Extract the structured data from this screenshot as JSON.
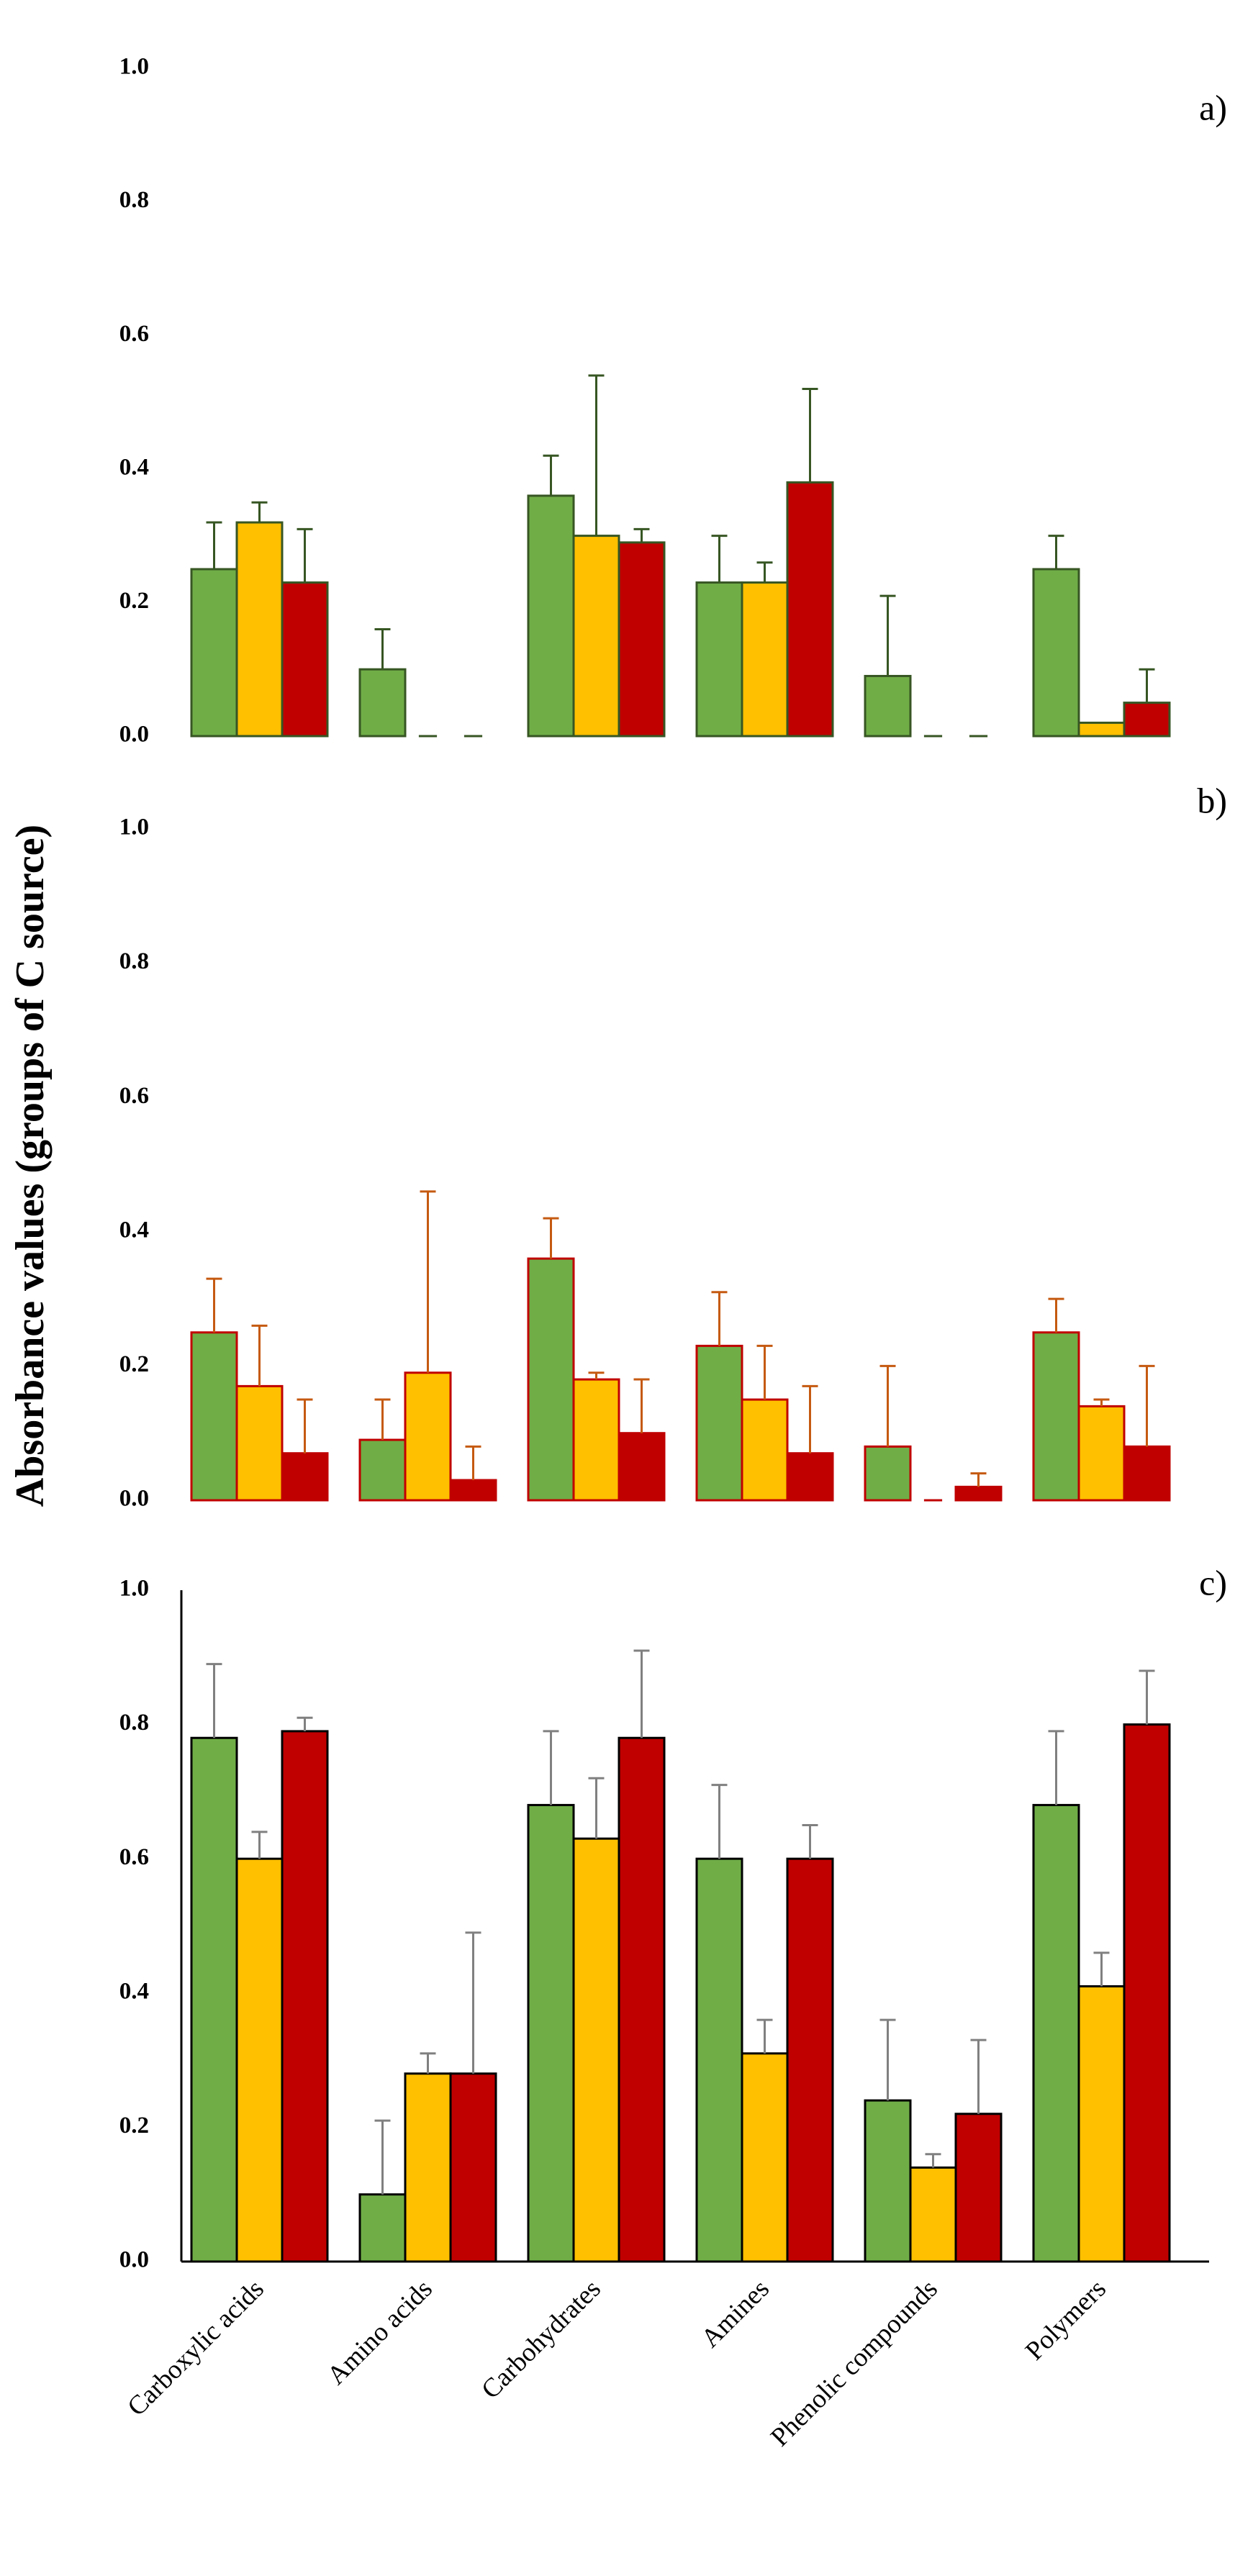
{
  "chart_data": {
    "type": "bar",
    "ylabel": "Absorbance values (groups of C source)",
    "categories": [
      "Carboxylic acids",
      "Amino acids",
      "Carbohydrates",
      "Amines",
      "Phenolic compounds",
      "Polymers"
    ],
    "series_colors": {
      "green": "#70AD47",
      "yellow": "#FFC000",
      "red": "#C00000"
    },
    "panels": [
      {
        "label": "a)",
        "ylim": [
          0,
          1
        ],
        "yticks": [
          "0.0",
          "0.2",
          "0.4",
          "0.6",
          "0.8",
          "1.0"
        ],
        "outline_color": "#375623",
        "error_color": "#375623",
        "series": [
          {
            "name": "green",
            "values": [
              0.25,
              0.1,
              0.36,
              0.23,
              0.09,
              0.25
            ],
            "errors": [
              0.07,
              0.06,
              0.06,
              0.07,
              0.12,
              0.05
            ]
          },
          {
            "name": "yellow",
            "values": [
              0.32,
              0.0,
              0.3,
              0.23,
              0.0,
              0.02
            ],
            "errors": [
              0.03,
              0.0,
              0.24,
              0.03,
              0.0,
              0.0
            ]
          },
          {
            "name": "red",
            "values": [
              0.23,
              0.0,
              0.29,
              0.38,
              0.0,
              0.05
            ],
            "errors": [
              0.08,
              0.0,
              0.02,
              0.14,
              0.0,
              0.05
            ]
          }
        ]
      },
      {
        "label": "b)",
        "ylim": [
          0,
          1
        ],
        "yticks": [
          "0.0",
          "0.2",
          "0.4",
          "0.6",
          "0.8",
          "1.0"
        ],
        "outline_color": "#C00000",
        "error_color": "#C55A11",
        "series": [
          {
            "name": "green",
            "values": [
              0.25,
              0.09,
              0.36,
              0.23,
              0.08,
              0.25
            ],
            "errors": [
              0.08,
              0.06,
              0.06,
              0.08,
              0.12,
              0.05
            ]
          },
          {
            "name": "yellow",
            "values": [
              0.17,
              0.19,
              0.18,
              0.15,
              0.0,
              0.14
            ],
            "errors": [
              0.09,
              0.27,
              0.01,
              0.08,
              0.0,
              0.01
            ]
          },
          {
            "name": "red",
            "values": [
              0.07,
              0.03,
              0.1,
              0.07,
              0.02,
              0.08
            ],
            "errors": [
              0.08,
              0.05,
              0.08,
              0.1,
              0.02,
              0.12
            ]
          }
        ]
      },
      {
        "label": "c)",
        "ylim": [
          0,
          1
        ],
        "yticks": [
          "0.0",
          "0.2",
          "0.4",
          "0.6",
          "0.8",
          "1.0"
        ],
        "outline_color": "#000000",
        "error_color": "#808080",
        "series": [
          {
            "name": "green",
            "values": [
              0.78,
              0.1,
              0.68,
              0.6,
              0.24,
              0.68
            ],
            "errors": [
              0.11,
              0.11,
              0.11,
              0.11,
              0.12,
              0.11
            ]
          },
          {
            "name": "yellow",
            "values": [
              0.6,
              0.28,
              0.63,
              0.31,
              0.14,
              0.41
            ],
            "errors": [
              0.04,
              0.03,
              0.09,
              0.05,
              0.02,
              0.05
            ]
          },
          {
            "name": "red",
            "values": [
              0.79,
              0.28,
              0.78,
              0.6,
              0.22,
              0.8
            ],
            "errors": [
              0.02,
              0.21,
              0.13,
              0.05,
              0.11,
              0.08
            ]
          }
        ]
      }
    ]
  }
}
